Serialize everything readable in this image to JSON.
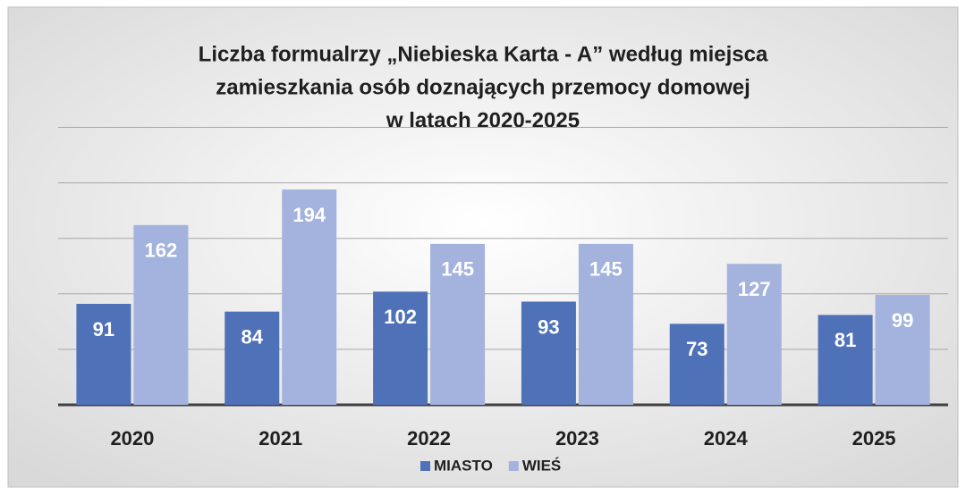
{
  "chart_data": {
    "type": "bar",
    "title": [
      "Liczba formualrzy „Niebieska Karta - A” według miejsca",
      "zamieszkania osób doznających przemocy domowej",
      "w latach 2020-2025"
    ],
    "categories": [
      "2020",
      "2021",
      "2022",
      "2023",
      "2024",
      "2025"
    ],
    "series": [
      {
        "name": "MIASTO",
        "color": "#4f71b8",
        "values": [
          91,
          84,
          102,
          93,
          73,
          81
        ]
      },
      {
        "name": "WIEŚ",
        "color": "#a3b3dd",
        "values": [
          162,
          194,
          145,
          145,
          127,
          99
        ]
      }
    ],
    "ylim": [
      0,
      250
    ],
    "yticks": [
      0,
      50,
      100,
      150,
      200,
      250
    ],
    "grid": true,
    "legend": "bottom"
  }
}
